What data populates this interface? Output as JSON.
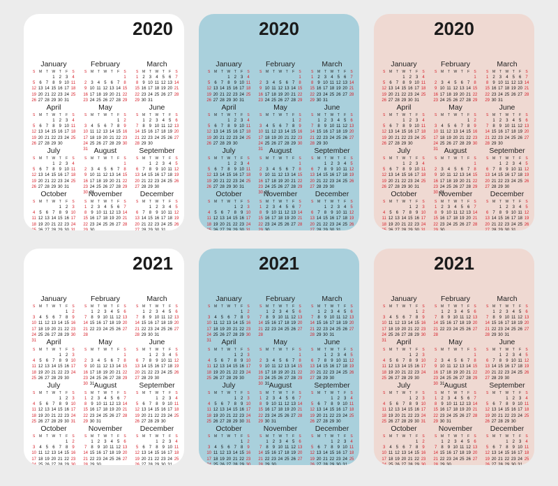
{
  "cards": [
    {
      "id": "c2020w",
      "year": "2020",
      "style": "white"
    },
    {
      "id": "c2020b",
      "year": "2020",
      "style": "blue"
    },
    {
      "id": "c2020p",
      "year": "2020",
      "style": "pink"
    },
    {
      "id": "c2021w",
      "year": "2021",
      "style": "white"
    },
    {
      "id": "c2021b",
      "year": "2021",
      "style": "blue"
    },
    {
      "id": "c2021p",
      "year": "2021",
      "style": "pink"
    }
  ],
  "month_names": [
    "January",
    "February",
    "March",
    "April",
    "May",
    "June",
    "July",
    "August",
    "September",
    "October",
    "November",
    "December"
  ],
  "weekday_letters": [
    "S",
    "M",
    "T",
    "W",
    "T",
    "F",
    "S"
  ],
  "colors": {
    "weekend": "#d7202a",
    "white_card": "#ffffff",
    "blue_card": "#a9d0dc",
    "pink_card": "#efd9d2",
    "background": "#ececec"
  }
}
